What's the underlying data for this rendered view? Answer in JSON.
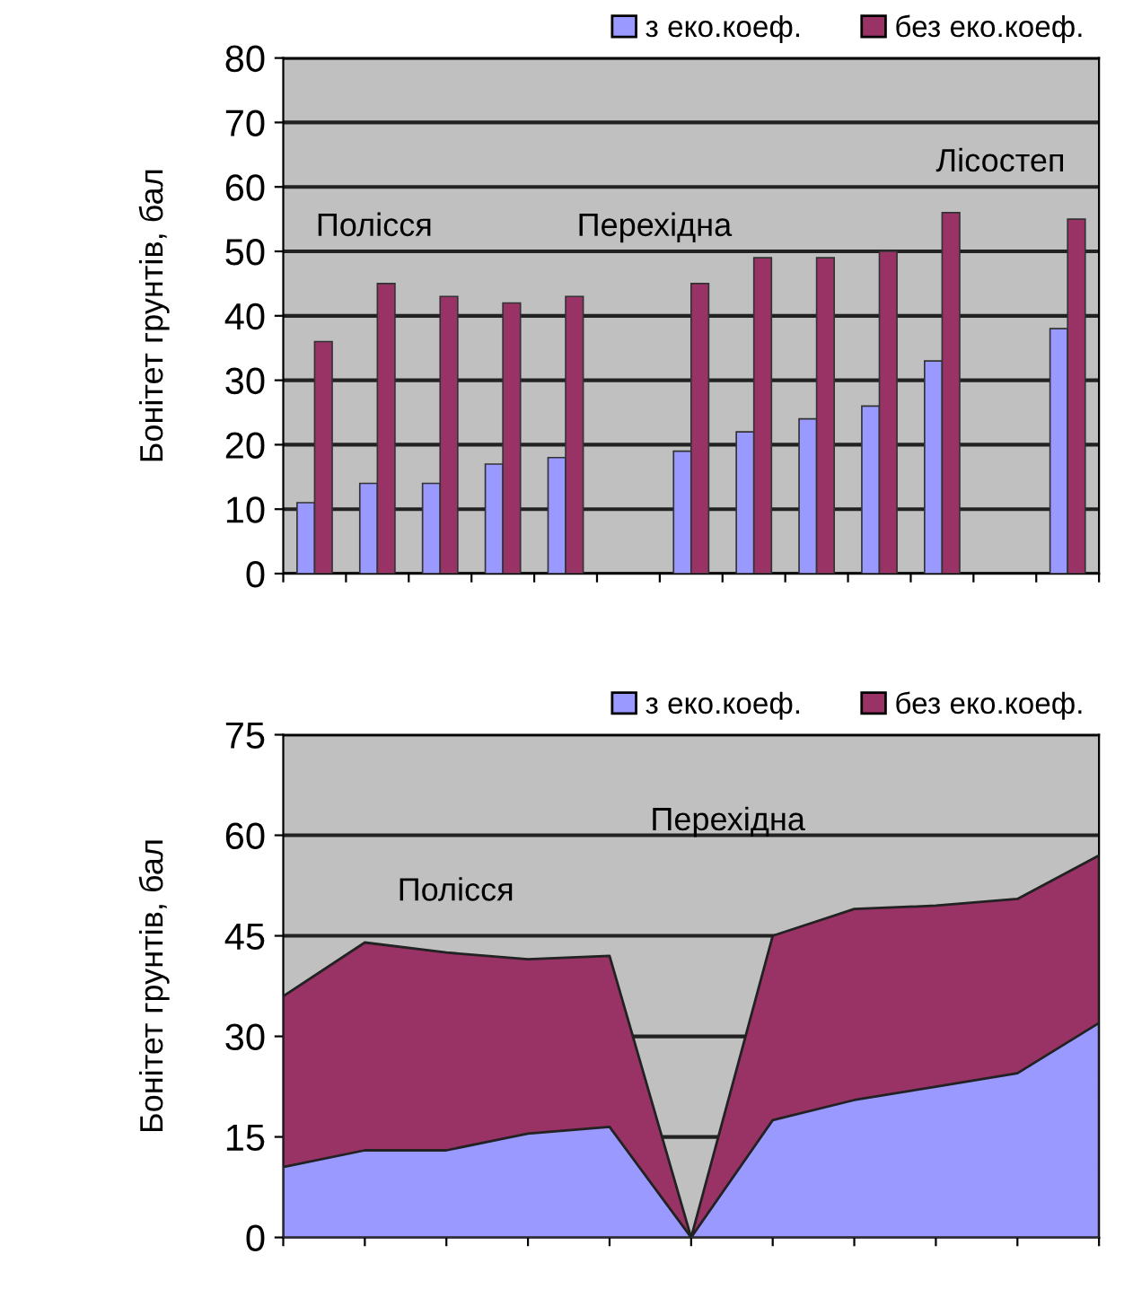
{
  "chart_data": [
    {
      "type": "bar",
      "ylabel": "Бонітет грунтів, бал",
      "categories": [
        null,
        null,
        null,
        null,
        null,
        null,
        null,
        null,
        null,
        null,
        null,
        null,
        null
      ],
      "series": [
        {
          "name": "з еко.коеф.",
          "color": "#9999ff",
          "values": [
            11,
            14,
            14,
            17,
            18,
            null,
            19,
            22,
            24,
            26,
            33,
            null,
            38
          ]
        },
        {
          "name": "без еко.коеф.",
          "color": "#993366",
          "values": [
            36,
            45,
            43,
            42,
            43,
            null,
            45,
            49,
            49,
            50,
            56,
            null,
            55
          ]
        }
      ],
      "ylim": [
        0,
        80
      ],
      "yticks": [
        0,
        10,
        20,
        30,
        40,
        50,
        60,
        70,
        80
      ],
      "grid": "y",
      "legend": "top right",
      "tick_labels": "y",
      "annotations": [
        "Полісся",
        "Перехідна",
        "Лісостеп"
      ]
    },
    {
      "type": "area",
      "ylabel": "Бонітет грунтів, бал",
      "categories": [
        null,
        null,
        null,
        null,
        null,
        null,
        null,
        null,
        null,
        null,
        null
      ],
      "series": [
        {
          "name": "з еко.коеф.",
          "color": "#9999ff",
          "values": [
            10.5,
            13,
            13,
            15.5,
            16.5,
            0,
            17.5,
            20.5,
            22.5,
            24.5,
            32
          ]
        },
        {
          "name": "без еко.коеф.",
          "color": "#993366",
          "values": [
            36,
            44,
            42.5,
            41.5,
            42,
            0,
            45,
            49,
            49.5,
            50.5,
            57
          ]
        }
      ],
      "ylim": [
        0,
        75
      ],
      "yticks": [
        0,
        15,
        30,
        45,
        60,
        75
      ],
      "grid": "y",
      "legend": "top right",
      "tick_labels": "y",
      "annotations": [
        "Полісся",
        "Перехідна"
      ]
    }
  ]
}
